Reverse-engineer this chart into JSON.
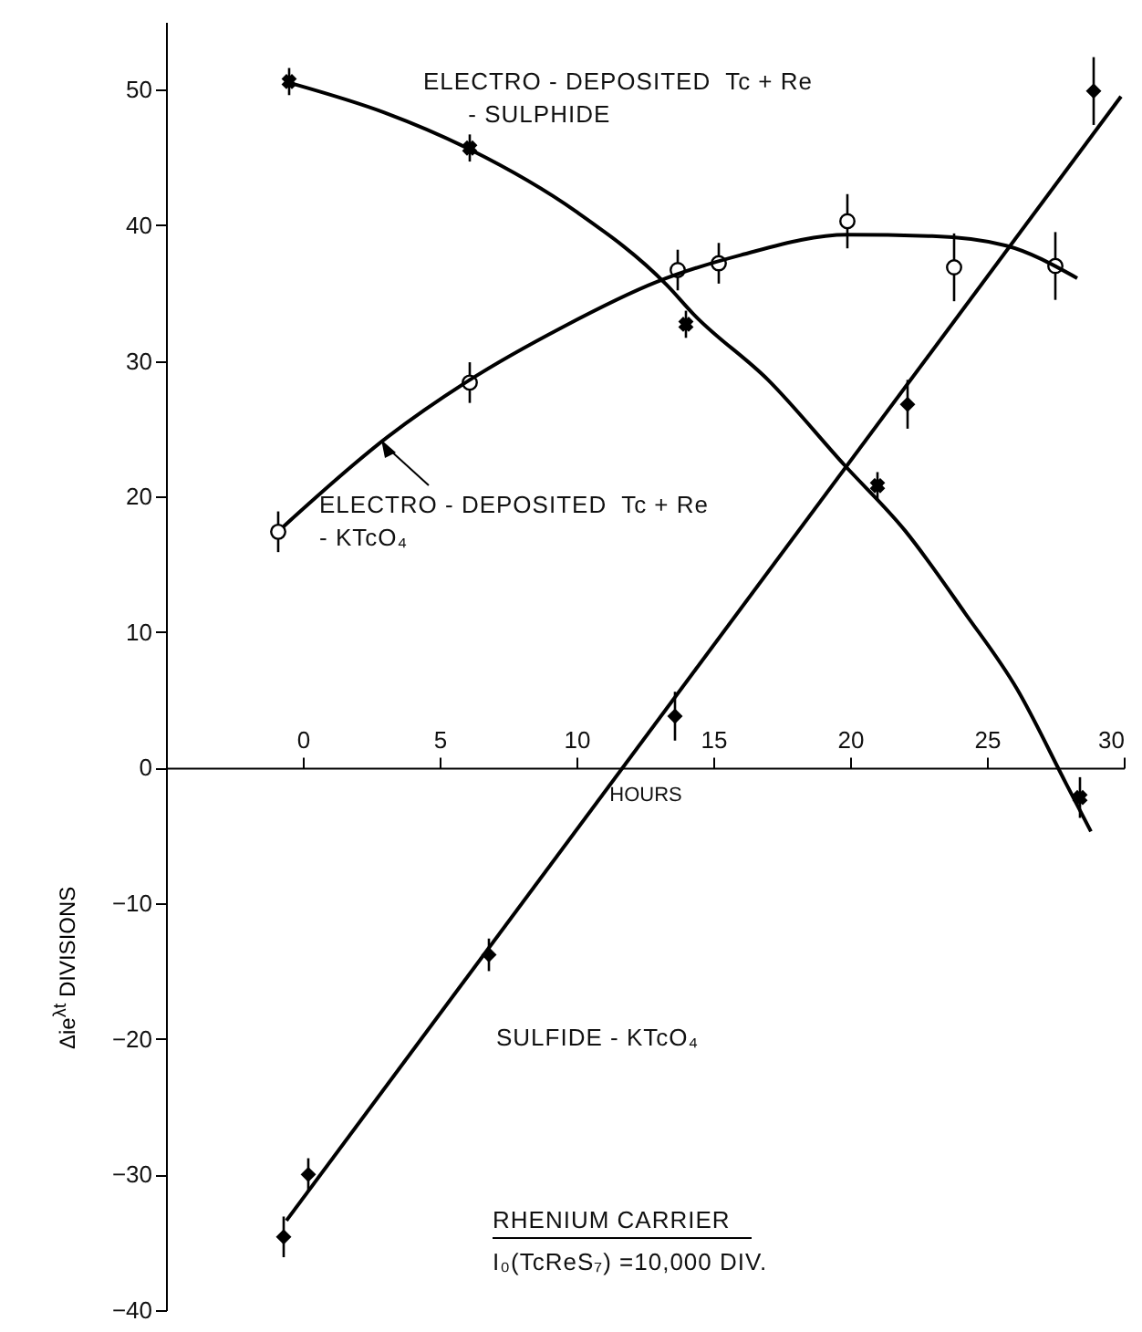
{
  "chart_data": {
    "type": "scatter",
    "xlabel": "HOURS",
    "ylabel": "Δie$^{λt}$ DIVISIONS",
    "xlim": [
      -5,
      30
    ],
    "ylim": [
      -40,
      55
    ],
    "xticks": [
      0,
      5,
      10,
      15,
      20,
      25,
      30
    ],
    "yticks": [
      -40,
      -30,
      -20,
      -10,
      0,
      10,
      20,
      30,
      40,
      50
    ],
    "grid": false,
    "annotations": [
      "ELECTRO - DEPOSITED  Tc + Re\n      - SULPHIDE",
      "ELECTRO - DEPOSITED  Tc + Re\n- KTcO₄",
      "SULFIDE - KTcO₄",
      "RHENIUM CARRIER\nI₀(TcReS₇) =10,000 DIV."
    ],
    "series": [
      {
        "type": "scatter",
        "marker": "cross",
        "color": "#000000",
        "x": [
          -0.5,
          6.1,
          14.0,
          21.0,
          28.4
        ],
        "values": [
          50.6,
          45.7,
          32.7,
          20.8,
          -2.2
        ],
        "errors": [
          1,
          1,
          1,
          1,
          1.5
        ]
      },
      {
        "type": "scatter",
        "marker": "circle",
        "color": "#000000",
        "x": [
          -0.9,
          6.1,
          13.7,
          15.2,
          19.9,
          23.8,
          27.5
        ],
        "values": [
          17.4,
          28.4,
          36.7,
          37.2,
          40.3,
          36.9,
          37.0
        ],
        "errors": [
          1.5,
          1.5,
          1.5,
          1.5,
          2,
          2.5,
          2.5
        ]
      },
      {
        "type": "scatter",
        "marker": "diamond",
        "color": "#000000",
        "x": [
          -0.7,
          0.2,
          6.8,
          13.6,
          22.1,
          28.9
        ],
        "values": [
          -34.6,
          -30.0,
          -13.8,
          3.8,
          26.8,
          49.9
        ],
        "errors": [
          1.5,
          1.2,
          1.2,
          1.8,
          1.8,
          2.5
        ]
      },
      {
        "type": "line",
        "marker": "none",
        "line_style": "solid",
        "color": "#000000",
        "x": [
          -0.3,
          3,
          6.1,
          10,
          13.3,
          14.3,
          17,
          19.8,
          22,
          24.2,
          26.1,
          27.9,
          28.8
        ],
        "values": [
          50.4,
          48.3,
          45.6,
          41,
          35.6,
          33.4,
          28.6,
          22.3,
          17.5,
          11.4,
          5.8,
          -1.2,
          -4.7
        ]
      },
      {
        "type": "line",
        "marker": "none",
        "line_style": "solid",
        "color": "#000000",
        "x": [
          -0.7,
          3.1,
          6.1,
          9.5,
          12.9,
          16,
          19.9,
          23,
          25.7,
          28.3
        ],
        "values": [
          17.8,
          24.4,
          28.6,
          32.5,
          35.8,
          37.8,
          39.3,
          39.2,
          38.5,
          36.1
        ]
      },
      {
        "type": "line",
        "marker": "none",
        "line_style": "solid",
        "color": "#000000",
        "x": [
          -0.6,
          29.9
        ],
        "values": [
          -33.4,
          49.5
        ]
      }
    ]
  }
}
